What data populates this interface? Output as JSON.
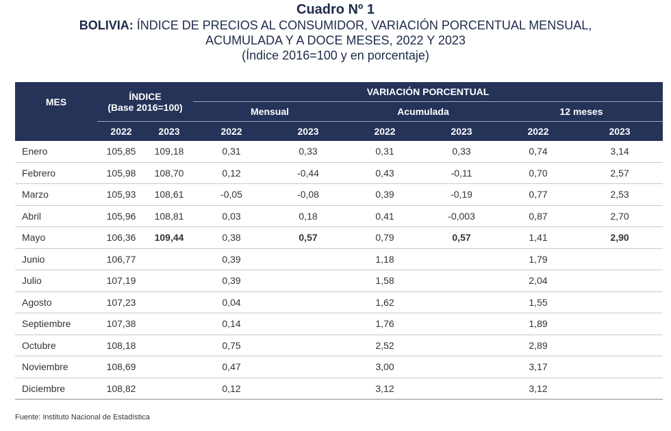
{
  "title": "Cuadro Nº 1",
  "subtitle_bold": "BOLIVIA:",
  "subtitle_rest": " ÍNDICE DE PRECIOS AL CONSUMIDOR, VARIACIÓN PORCENTUAL MENSUAL,",
  "subtitle_line2": "ACUMULADA Y A DOCE MESES, 2022 Y 2023",
  "subtitle_line3": "(Índice 2016=100 y en porcentaje)",
  "header": {
    "mes": "MES",
    "indice": "ÍNDICE",
    "indice_base": "(Base 2016=100)",
    "variacion": "VARIACIÓN PORCENTUAL",
    "mensual": "Mensual",
    "acumulada": "Acumulada",
    "doce": "12 meses",
    "years": [
      "2022",
      "2023",
      "2022",
      "2023",
      "2022",
      "2023",
      "2022",
      "2023"
    ]
  },
  "rows": [
    {
      "mes": "Enero",
      "v": [
        "105,85",
        "109,18",
        "0,31",
        "0,33",
        "0,31",
        "0,33",
        "0,74",
        "3,14"
      ]
    },
    {
      "mes": "Febrero",
      "v": [
        "105,98",
        "108,70",
        "0,12",
        "-0,44",
        "0,43",
        "-0,11",
        "0,70",
        "2,57"
      ]
    },
    {
      "mes": "Marzo",
      "v": [
        "105,93",
        "108,61",
        "-0,05",
        "-0,08",
        "0,39",
        "-0,19",
        "0,77",
        "2,53"
      ]
    },
    {
      "mes": "Abril",
      "v": [
        "105,96",
        "108,81",
        "0,03",
        "0,18",
        "0,41",
        "-0,003",
        "0,87",
        "2,70"
      ]
    },
    {
      "mes": "Mayo",
      "v": [
        "106,36",
        "109,44",
        "0,38",
        "0,57",
        "0,79",
        "0,57",
        "1,41",
        "2,90"
      ]
    },
    {
      "mes": "Junio",
      "v": [
        "106,77",
        "",
        "0,39",
        "",
        "1,18",
        "",
        "1,79",
        ""
      ]
    },
    {
      "mes": "Julio",
      "v": [
        "107,19",
        "",
        "0,39",
        "",
        "1,58",
        "",
        "2,04",
        ""
      ]
    },
    {
      "mes": "Agosto",
      "v": [
        "107,23",
        "",
        "0,04",
        "",
        "1,62",
        "",
        "1,55",
        ""
      ]
    },
    {
      "mes": "Septiembre",
      "v": [
        "107,38",
        "",
        "0,14",
        "",
        "1,76",
        "",
        "1,89",
        ""
      ]
    },
    {
      "mes": "Octubre",
      "v": [
        "108,18",
        "",
        "0,75",
        "",
        "2,52",
        "",
        "2,89",
        ""
      ]
    },
    {
      "mes": "Noviembre",
      "v": [
        "108,69",
        "",
        "0,47",
        "",
        "3,00",
        "",
        "3,17",
        ""
      ]
    },
    {
      "mes": "Diciembre",
      "v": [
        "108,82",
        "",
        "0,12",
        "",
        "3,12",
        "",
        "3,12",
        ""
      ]
    }
  ],
  "source": "Fuente: Instituto Nacional de Estadística"
}
